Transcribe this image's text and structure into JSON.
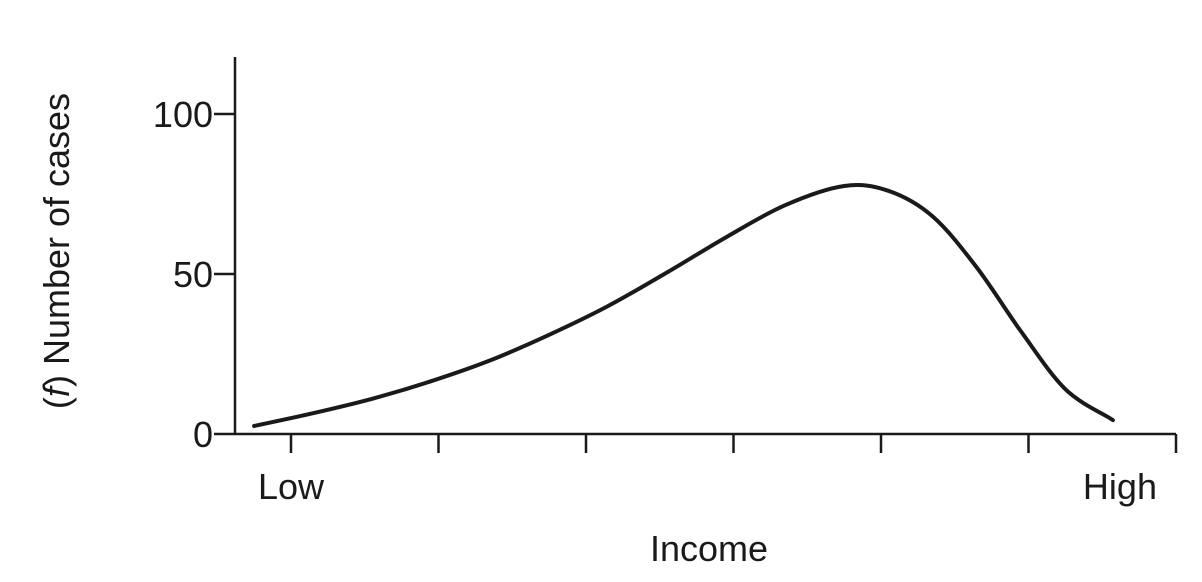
{
  "chart_data": {
    "type": "line",
    "title": "",
    "xlabel": "Income",
    "ylabel_prefix": "(",
    "ylabel_italic": "f",
    "ylabel_suffix": ") Number of cases",
    "ylim": [
      0,
      120
    ],
    "yticks": [
      0,
      50,
      100
    ],
    "xlim": [
      0,
      6
    ],
    "xtick_positions": [
      0,
      1,
      2,
      3,
      4,
      5,
      6
    ],
    "x_end_labels": [
      "Low",
      "High"
    ],
    "grid": false,
    "series": [
      {
        "color": "#1a1a1a",
        "x": [
          -0.25,
          0.15,
          0.55,
          0.95,
          1.35,
          1.75,
          2.15,
          2.55,
          2.95,
          3.35,
          3.75,
          4.05,
          4.35,
          4.65,
          4.95,
          5.25,
          5.55,
          5.55
        ],
        "y": [
          2.5,
          6.5,
          11,
          16.5,
          23,
          31,
          40,
          50.5,
          61.5,
          71.5,
          77.5,
          76,
          68,
          52,
          32,
          14,
          5,
          5
        ]
      }
    ]
  }
}
